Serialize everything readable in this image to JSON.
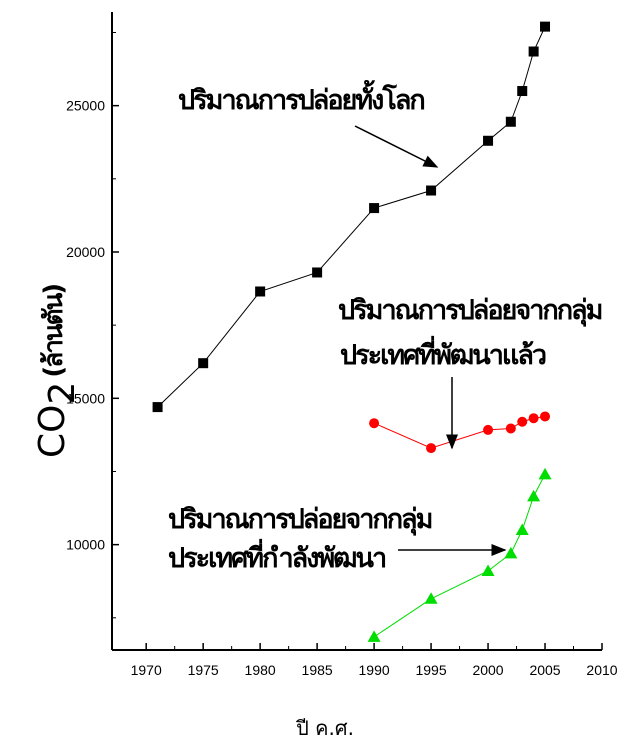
{
  "chart_data": {
    "type": "line",
    "xlabel": "ปี ค.ศ.",
    "ylabel": "CO",
    "ylabel_sub": "2",
    "ylabel_unit": "(ล้านตัน)",
    "xlim": [
      1967,
      2010
    ],
    "ylim": [
      6400,
      28200
    ],
    "xticks": [
      1970,
      1975,
      1980,
      1985,
      1990,
      1995,
      2000,
      2005,
      2010
    ],
    "yticks": [
      10000,
      15000,
      20000,
      25000
    ],
    "grid": false,
    "series": [
      {
        "name": "ปริมาณการปล่อยทั้งโลก",
        "color": "#000000",
        "marker": "square",
        "x": [
          1971,
          1975,
          1980,
          1985,
          1990,
          1995,
          2000,
          2002,
          2003,
          2004,
          2005
        ],
        "y": [
          14700,
          16200,
          18650,
          19300,
          21500,
          22100,
          23800,
          24450,
          25500,
          26850,
          27700
        ]
      },
      {
        "name": "ปริมาณการปล่อยจากกลุ่มประเทศที่พัฒนาแล้ว",
        "color": "#ff0000",
        "marker": "circle",
        "x": [
          1990,
          1995,
          2000,
          2002,
          2003,
          2004,
          2005
        ],
        "y": [
          14150,
          13300,
          13920,
          13970,
          14200,
          14320,
          14380
        ]
      },
      {
        "name": "ปริมาณการปล่อยจากกลุ่มประเทศที่กำลังพัฒนา",
        "color": "#00dd00",
        "marker": "triangle",
        "x": [
          1990,
          1995,
          2000,
          2002,
          2003,
          2004,
          2005
        ],
        "y": [
          6850,
          8150,
          9100,
          9700,
          10500,
          11650,
          12400
        ]
      }
    ],
    "annotations": [
      {
        "lines": [
          "ปริมาณการปล่อยทั้งโลก"
        ]
      },
      {
        "lines": [
          "ปริมาณการปล่อยจากกลุ่ม",
          "ประเทศที่พัฒนาแล้ว"
        ]
      },
      {
        "lines": [
          "ปริมาณการปล่อยจากกลุ่ม",
          "ประเทศที่กำลังพัฒนา"
        ]
      }
    ]
  }
}
